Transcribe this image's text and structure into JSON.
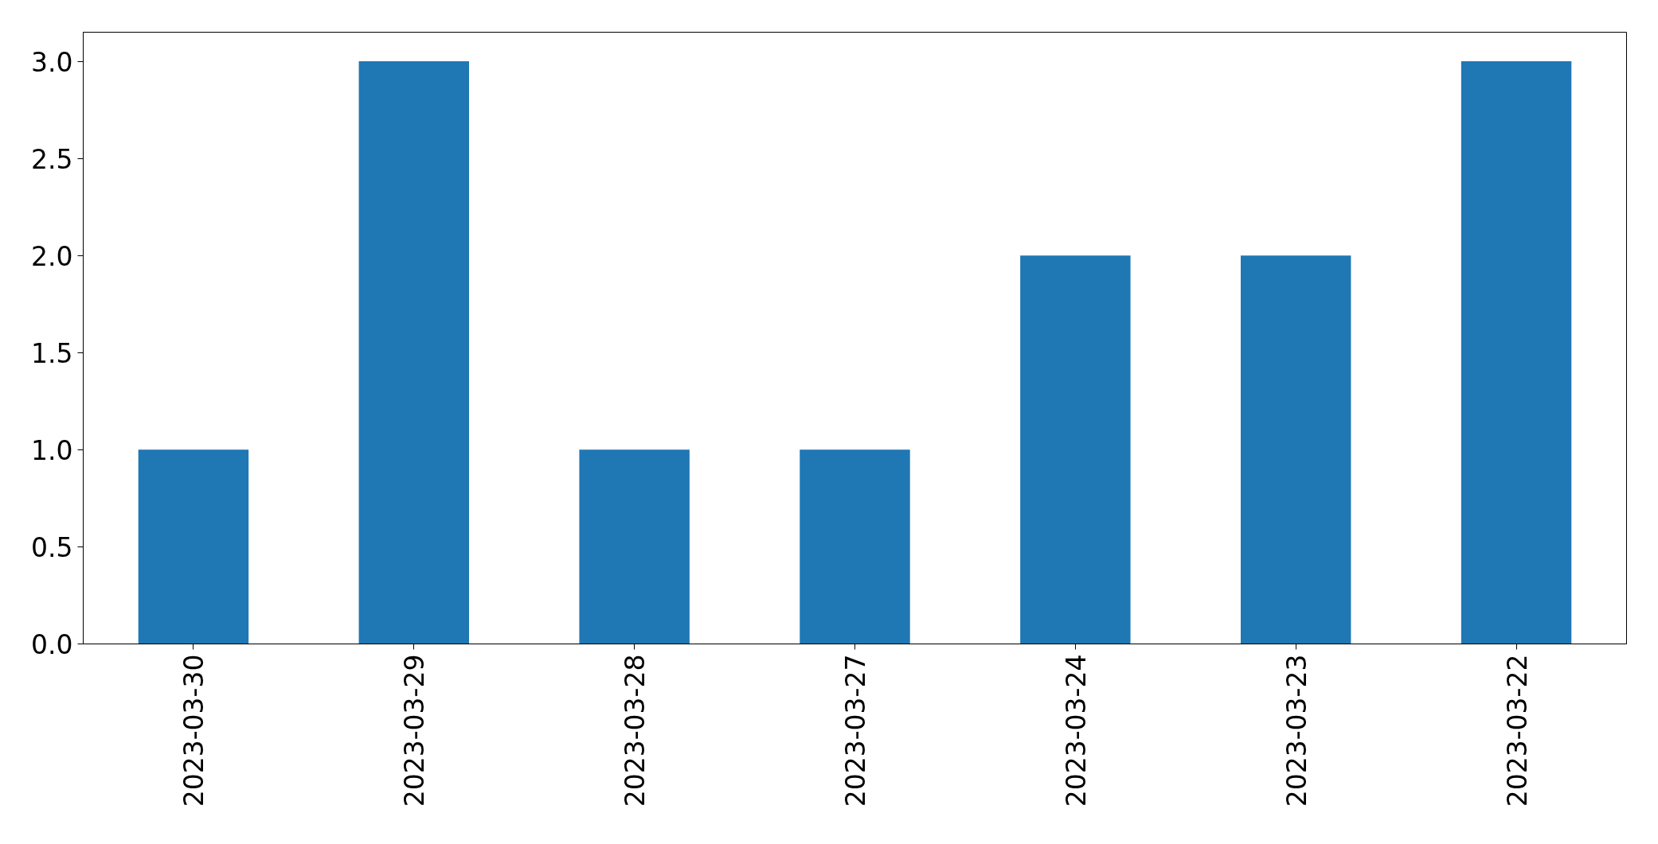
{
  "chart_data": {
    "type": "bar",
    "categories": [
      "2023-03-30",
      "2023-03-29",
      "2023-03-28",
      "2023-03-27",
      "2023-03-24",
      "2023-03-23",
      "2023-03-22"
    ],
    "values": [
      1,
      3,
      1,
      1,
      2,
      2,
      3
    ],
    "color": "#1f77b4",
    "ylim": [
      0,
      3.15
    ],
    "yticks": [
      {
        "value": 0,
        "label": "0.0"
      },
      0.5,
      {
        "value": 1,
        "label": "1.0"
      },
      1.5,
      {
        "value": 2,
        "label": "2.0"
      },
      2.5,
      {
        "value": 3,
        "label": "3.0"
      }
    ]
  }
}
